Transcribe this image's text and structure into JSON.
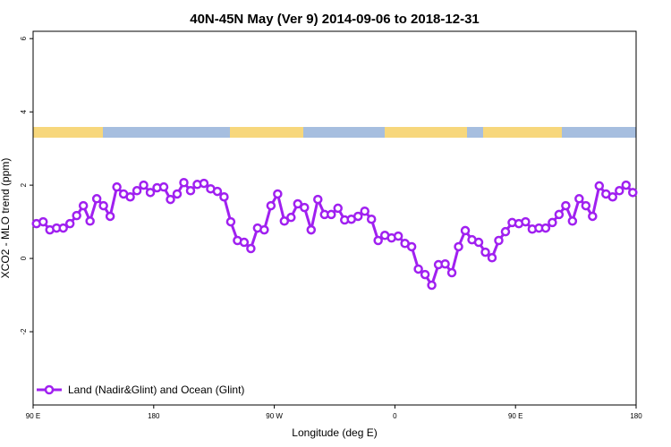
{
  "chart_data": {
    "type": "line",
    "title": "40N-45N May (Ver 9)   2014-09-06 to 2018-12-31",
    "x_label": "Longitude (deg E)",
    "y_label": "XCO2 - MLO trend (ppm)",
    "x": [
      92.5,
      97.5,
      102.5,
      107.5,
      112.5,
      117.5,
      122.5,
      127.5,
      132.5,
      137.5,
      142.5,
      147.5,
      152.5,
      157.5,
      162.5,
      167.5,
      172.5,
      177.5,
      182.5,
      187.5,
      192.5,
      197.5,
      202.5,
      207.5,
      212.5,
      217.5,
      222.5,
      227.5,
      232.5,
      237.5,
      242.5,
      247.5,
      252.5,
      257.5,
      262.5,
      267.5,
      272.5,
      277.5,
      282.5,
      287.5,
      292.5,
      297.5,
      302.5,
      307.5,
      312.5,
      317.5,
      322.5,
      327.5,
      332.5,
      337.5,
      342.5,
      347.5,
      352.5,
      357.5,
      362.5,
      367.5,
      372.5,
      377.5,
      382.5,
      387.5,
      392.5,
      397.5,
      402.5,
      407.5,
      412.5,
      417.5,
      422.5,
      427.5,
      432.5,
      437.5,
      442.5,
      447.5,
      452.5,
      457.5,
      462.5,
      467.5,
      472.5,
      477.5,
      482.5,
      487.5,
      492.5,
      497.5,
      502.5,
      507.5,
      512.5,
      517.5,
      522.5,
      527.5,
      532.5,
      537.5
    ],
    "series": [
      {
        "name": "Land (Nadir&Glint) and Ocean (Glint)",
        "color": "#a020f0",
        "values": [
          0.95,
          1.0,
          0.78,
          0.83,
          0.83,
          0.95,
          1.17,
          1.44,
          1.02,
          1.63,
          1.44,
          1.15,
          1.95,
          1.76,
          1.68,
          1.85,
          2.0,
          1.8,
          1.93,
          1.95,
          1.61,
          1.76,
          2.07,
          1.85,
          2.02,
          2.05,
          1.9,
          1.83,
          1.68,
          1.0,
          0.49,
          0.44,
          0.27,
          0.83,
          0.78,
          1.44,
          1.76,
          1.02,
          1.12,
          1.49,
          1.39,
          0.78,
          1.61,
          1.2,
          1.2,
          1.37,
          1.05,
          1.07,
          1.15,
          1.29,
          1.07,
          0.49,
          0.63,
          0.56,
          0.61,
          0.41,
          0.32,
          -0.29,
          -0.44,
          -0.73,
          -0.17,
          -0.15,
          -0.39,
          0.32,
          0.76,
          0.51,
          0.44,
          0.17,
          0.02,
          0.49,
          0.73,
          0.98,
          0.95,
          1.0,
          0.8,
          0.83,
          0.83,
          0.98,
          1.2,
          1.44,
          1.02,
          1.63,
          1.44,
          1.15,
          1.98,
          1.76,
          1.68,
          1.85,
          2.0,
          1.8
        ]
      }
    ],
    "xlim": [
      90,
      540
    ],
    "xticks": [
      {
        "value": 90,
        "label": "90 E"
      },
      180,
      {
        "value": 270,
        "label": "90 W"
      },
      {
        "value": 360,
        "label": "0"
      },
      {
        "value": 450,
        "label": "90 E"
      },
      {
        "value": 540,
        "label": "180"
      }
    ],
    "ylim": [
      -4,
      6.2
    ],
    "yticks": [
      -2,
      0,
      2,
      4,
      6
    ],
    "legend": "bottom-left"
  }
}
